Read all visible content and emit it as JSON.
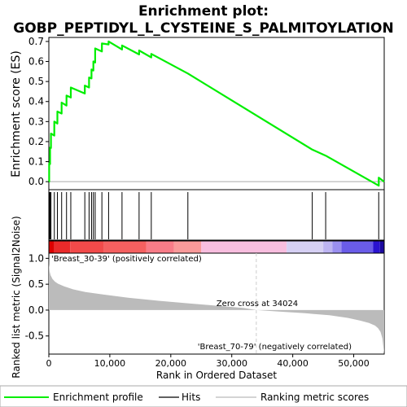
{
  "chart_data": {
    "type": "line",
    "title_line1": "Enrichment plot:",
    "title_line2": "GOBP_PEPTIDYL_L_CYSTEINE_S_PALMITOYLATION",
    "es_ylabel": "Enrichment score (ES)",
    "es_yticks": [
      "0.0",
      "0.1",
      "0.2",
      "0.3",
      "0.4",
      "0.5",
      "0.6",
      "0.7"
    ],
    "es_ylim": [
      -0.04,
      0.72
    ],
    "xlim": [
      0,
      55000
    ],
    "xticks": [
      0,
      10000,
      20000,
      30000,
      40000,
      50000
    ],
    "xtick_labels": [
      "0",
      "10,000",
      "20,000",
      "30,000",
      "40,000",
      "50,000"
    ],
    "xlabel": "Rank in Ordered Dataset",
    "metric_ylabel": "Ranked list metric (Signal2Noise)",
    "metric_yticks": [
      "1.0",
      "0.5",
      "0.0",
      "-0.5"
    ],
    "metric_ylim": [
      -0.85,
      1.1
    ],
    "zero_cross_rank": 34024,
    "zero_cross_label": "Zero cross at 34024",
    "pos_label": "'Breast_30-39' (positively correlated)",
    "neg_label": "'Breast_70-79' (negatively correlated)",
    "hits": [
      60,
      200,
      350,
      900,
      1400,
      2100,
      2900,
      3600,
      5900,
      6600,
      7000,
      7300,
      7600,
      8700,
      9800,
      12000,
      14800,
      16800,
      22800,
      43200,
      45400,
      54100
    ],
    "es_profile": {
      "x": [
        0,
        60,
        60,
        200,
        200,
        350,
        350,
        900,
        900,
        1400,
        1400,
        2100,
        2100,
        2900,
        2900,
        3600,
        3600,
        5900,
        5900,
        6600,
        6600,
        7000,
        7000,
        7300,
        7300,
        7600,
        7600,
        8700,
        8700,
        9800,
        9800,
        12000,
        12000,
        14800,
        14800,
        16800,
        16800,
        22800,
        22800,
        43200,
        43200,
        45400,
        45400,
        54100,
        54100,
        55000
      ],
      "y": [
        0.0,
        0.0,
        0.09,
        0.088,
        0.17,
        0.168,
        0.24,
        0.23,
        0.3,
        0.29,
        0.35,
        0.34,
        0.395,
        0.38,
        0.43,
        0.42,
        0.47,
        0.44,
        0.48,
        0.47,
        0.52,
        0.515,
        0.56,
        0.555,
        0.6,
        0.595,
        0.665,
        0.65,
        0.69,
        0.685,
        0.7,
        0.66,
        0.68,
        0.635,
        0.655,
        0.62,
        0.638,
        0.54,
        0.54,
        0.16,
        0.16,
        0.13,
        0.13,
        -0.02,
        0.02,
        0.0
      ]
    },
    "metric_curve": {
      "x": [
        0,
        30,
        120,
        300,
        600,
        1000,
        1500,
        2500,
        4000,
        6000,
        9000,
        13000,
        18000,
        23000,
        28000,
        32000,
        34024,
        38000,
        42000,
        46000,
        49000,
        51000,
        52500,
        53500,
        54000,
        54400,
        54700,
        55000
      ],
      "y": [
        1.05,
        0.88,
        0.75,
        0.67,
        0.6,
        0.55,
        0.51,
        0.46,
        0.4,
        0.35,
        0.3,
        0.24,
        0.18,
        0.13,
        0.08,
        0.04,
        0.0,
        -0.03,
        -0.06,
        -0.1,
        -0.15,
        -0.2,
        -0.25,
        -0.3,
        -0.35,
        -0.42,
        -0.55,
        -0.85
      ]
    },
    "heat_segments": [
      {
        "from": 0,
        "to": 900,
        "color": "#dd0000"
      },
      {
        "from": 900,
        "to": 3500,
        "color": "#ea2a2a"
      },
      {
        "from": 3500,
        "to": 9000,
        "color": "#f24a4a"
      },
      {
        "from": 9000,
        "to": 16000,
        "color": "#f56060"
      },
      {
        "from": 16000,
        "to": 20500,
        "color": "#f87c88"
      },
      {
        "from": 20500,
        "to": 25000,
        "color": "#f99a9a"
      },
      {
        "from": 25000,
        "to": 39000,
        "color": "#f8bedf"
      },
      {
        "from": 39000,
        "to": 45000,
        "color": "#d6d0f4"
      },
      {
        "from": 45000,
        "to": 46500,
        "color": "#bdb4f2"
      },
      {
        "from": 46500,
        "to": 48000,
        "color": "#9a8ff0"
      },
      {
        "from": 48000,
        "to": 53200,
        "color": "#6a5ce8"
      },
      {
        "from": 53200,
        "to": 54300,
        "color": "#2a12d0"
      },
      {
        "from": 54300,
        "to": 55000,
        "color": "#1c0aa0"
      }
    ],
    "legend": {
      "profile": "Enrichment profile",
      "hits": "Hits",
      "metric": "Ranking metric scores"
    },
    "colors": {
      "profile": "#00ee00",
      "hits": "#000000",
      "metric_fill": "#bbbbbb",
      "zero_line": "#cccccc",
      "pos_label": "#dd0000",
      "neg_label": "#1010cc"
    }
  }
}
